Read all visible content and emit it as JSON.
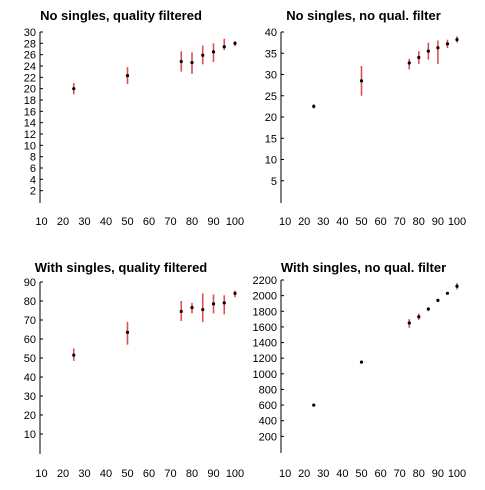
{
  "chart_data": [
    {
      "type": "scatter",
      "title": "No singles, quality filtered",
      "xlim": [
        0,
        100
      ],
      "ylim": [
        0,
        30
      ],
      "xticks": [
        10,
        20,
        30,
        40,
        50,
        60,
        70,
        80,
        90,
        100
      ],
      "yticks": [
        2,
        4,
        6,
        8,
        10,
        12,
        14,
        16,
        18,
        20,
        22,
        24,
        26,
        28,
        30
      ],
      "grid": false,
      "marker_color": "#000000",
      "errorbar_color": "#e05050",
      "points": [
        {
          "x": 25,
          "y": 20.0,
          "low": 19.0,
          "high": 21.0
        },
        {
          "x": 50,
          "y": 22.3,
          "low": 20.8,
          "high": 23.8
        },
        {
          "x": 75,
          "y": 24.8,
          "low": 23.0,
          "high": 26.6
        },
        {
          "x": 80,
          "y": 24.6,
          "low": 22.6,
          "high": 26.4
        },
        {
          "x": 85,
          "y": 25.9,
          "low": 24.3,
          "high": 27.6
        },
        {
          "x": 90,
          "y": 26.5,
          "low": 24.7,
          "high": 28.0
        },
        {
          "x": 95,
          "y": 27.4,
          "low": 26.8,
          "high": 28.8
        },
        {
          "x": 100,
          "y": 28.0,
          "low": 27.5,
          "high": 28.4
        }
      ]
    },
    {
      "type": "scatter",
      "title": "No singles, no qual. filter",
      "xlim": [
        0,
        100
      ],
      "ylim": [
        0,
        40
      ],
      "xticks": [
        10,
        20,
        30,
        40,
        50,
        60,
        70,
        80,
        90,
        100
      ],
      "yticks": [
        5,
        10,
        15,
        20,
        25,
        30,
        35,
        40
      ],
      "grid": false,
      "marker_color": "#000000",
      "errorbar_color": "#e05050",
      "points": [
        {
          "x": 25,
          "y": 22.5,
          "low": 22.0,
          "high": 23.0
        },
        {
          "x": 50,
          "y": 28.5,
          "low": 25.0,
          "high": 32.0
        },
        {
          "x": 75,
          "y": 32.7,
          "low": 31.2,
          "high": 33.7
        },
        {
          "x": 80,
          "y": 34.0,
          "low": 32.5,
          "high": 35.5
        },
        {
          "x": 85,
          "y": 35.5,
          "low": 33.5,
          "high": 37.5
        },
        {
          "x": 90,
          "y": 36.3,
          "low": 32.5,
          "high": 38.0
        },
        {
          "x": 95,
          "y": 37.2,
          "low": 36.2,
          "high": 38.2
        },
        {
          "x": 100,
          "y": 38.2,
          "low": 37.5,
          "high": 39.0
        }
      ]
    },
    {
      "type": "scatter",
      "title": "With singles, quality filtered",
      "xlim": [
        0,
        100
      ],
      "ylim": [
        0,
        90
      ],
      "xticks": [
        10,
        20,
        30,
        40,
        50,
        60,
        70,
        80,
        90,
        100
      ],
      "yticks": [
        10,
        20,
        30,
        40,
        50,
        60,
        70,
        80,
        90
      ],
      "grid": false,
      "marker_color": "#000000",
      "errorbar_color": "#e05050",
      "points": [
        {
          "x": 25,
          "y": 51.5,
          "low": 48.5,
          "high": 55.0
        },
        {
          "x": 50,
          "y": 63.5,
          "low": 57.0,
          "high": 69.0
        },
        {
          "x": 75,
          "y": 74.5,
          "low": 69.5,
          "high": 80.0
        },
        {
          "x": 80,
          "y": 76.5,
          "low": 73.5,
          "high": 79.0
        },
        {
          "x": 85,
          "y": 75.5,
          "low": 69.0,
          "high": 84.0
        },
        {
          "x": 90,
          "y": 78.5,
          "low": 73.5,
          "high": 83.5
        },
        {
          "x": 95,
          "y": 79.0,
          "low": 73.0,
          "high": 83.0
        },
        {
          "x": 100,
          "y": 84.0,
          "low": 82.0,
          "high": 85.5
        }
      ]
    },
    {
      "type": "scatter",
      "title": "With singles, no qual. filter",
      "xlim": [
        0,
        100
      ],
      "ylim": [
        0,
        2200
      ],
      "xticks": [
        10,
        20,
        30,
        40,
        50,
        60,
        70,
        80,
        90,
        100
      ],
      "yticks": [
        200,
        400,
        600,
        800,
        1000,
        1200,
        1400,
        1600,
        1800,
        2000,
        2200
      ],
      "grid": false,
      "marker_color": "#000000",
      "errorbar_color": "#e05050",
      "points": [
        {
          "x": 25,
          "y": 600,
          "low": 600,
          "high": 600
        },
        {
          "x": 50,
          "y": 1150,
          "low": 1150,
          "high": 1150
        },
        {
          "x": 75,
          "y": 1650,
          "low": 1590,
          "high": 1700
        },
        {
          "x": 80,
          "y": 1730,
          "low": 1690,
          "high": 1770
        },
        {
          "x": 85,
          "y": 1830,
          "low": 1800,
          "high": 1850
        },
        {
          "x": 90,
          "y": 1940,
          "low": 1920,
          "high": 1960
        },
        {
          "x": 95,
          "y": 2030,
          "low": 2020,
          "high": 2040
        },
        {
          "x": 100,
          "y": 2120,
          "low": 2080,
          "high": 2160
        }
      ]
    }
  ]
}
